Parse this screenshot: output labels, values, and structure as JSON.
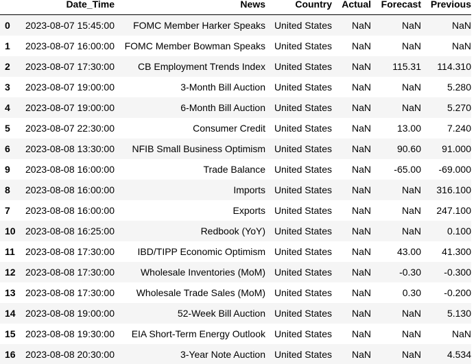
{
  "table": {
    "columns": [
      "",
      "Date_Time",
      "News",
      "Country",
      "Actual",
      "Forecast",
      "Previous"
    ],
    "rows": [
      {
        "index": "0",
        "date_time": "2023-08-07 15:45:00",
        "news": "FOMC Member Harker Speaks",
        "country": "United States",
        "actual": "NaN",
        "forecast": "NaN",
        "previous": "NaN"
      },
      {
        "index": "1",
        "date_time": "2023-08-07 16:00:00",
        "news": "FOMC Member Bowman Speaks",
        "country": "United States",
        "actual": "NaN",
        "forecast": "NaN",
        "previous": "NaN"
      },
      {
        "index": "2",
        "date_time": "2023-08-07 17:30:00",
        "news": "CB Employment Trends Index",
        "country": "United States",
        "actual": "NaN",
        "forecast": "115.31",
        "previous": "114.310"
      },
      {
        "index": "3",
        "date_time": "2023-08-07 19:00:00",
        "news": "3-Month Bill Auction",
        "country": "United States",
        "actual": "NaN",
        "forecast": "NaN",
        "previous": "5.280"
      },
      {
        "index": "4",
        "date_time": "2023-08-07 19:00:00",
        "news": "6-Month Bill Auction",
        "country": "United States",
        "actual": "NaN",
        "forecast": "NaN",
        "previous": "5.270"
      },
      {
        "index": "5",
        "date_time": "2023-08-07 22:30:00",
        "news": "Consumer Credit",
        "country": "United States",
        "actual": "NaN",
        "forecast": "13.00",
        "previous": "7.240"
      },
      {
        "index": "6",
        "date_time": "2023-08-08 13:30:00",
        "news": "NFIB Small Business Optimism",
        "country": "United States",
        "actual": "NaN",
        "forecast": "90.60",
        "previous": "91.000"
      },
      {
        "index": "9",
        "date_time": "2023-08-08 16:00:00",
        "news": "Trade Balance",
        "country": "United States",
        "actual": "NaN",
        "forecast": "-65.00",
        "previous": "-69.000"
      },
      {
        "index": "8",
        "date_time": "2023-08-08 16:00:00",
        "news": "Imports",
        "country": "United States",
        "actual": "NaN",
        "forecast": "NaN",
        "previous": "316.100"
      },
      {
        "index": "7",
        "date_time": "2023-08-08 16:00:00",
        "news": "Exports",
        "country": "United States",
        "actual": "NaN",
        "forecast": "NaN",
        "previous": "247.100"
      },
      {
        "index": "10",
        "date_time": "2023-08-08 16:25:00",
        "news": "Redbook (YoY)",
        "country": "United States",
        "actual": "NaN",
        "forecast": "NaN",
        "previous": "0.100"
      },
      {
        "index": "11",
        "date_time": "2023-08-08 17:30:00",
        "news": "IBD/TIPP Economic Optimism",
        "country": "United States",
        "actual": "NaN",
        "forecast": "43.00",
        "previous": "41.300"
      },
      {
        "index": "12",
        "date_time": "2023-08-08 17:30:00",
        "news": "Wholesale Inventories (MoM)",
        "country": "United States",
        "actual": "NaN",
        "forecast": "-0.30",
        "previous": "-0.300"
      },
      {
        "index": "13",
        "date_time": "2023-08-08 17:30:00",
        "news": "Wholesale Trade Sales (MoM)",
        "country": "United States",
        "actual": "NaN",
        "forecast": "0.30",
        "previous": "-0.200"
      },
      {
        "index": "14",
        "date_time": "2023-08-08 19:00:00",
        "news": "52-Week Bill Auction",
        "country": "United States",
        "actual": "NaN",
        "forecast": "NaN",
        "previous": "5.130"
      },
      {
        "index": "15",
        "date_time": "2023-08-08 19:30:00",
        "news": "EIA Short-Term Energy Outlook",
        "country": "United States",
        "actual": "NaN",
        "forecast": "NaN",
        "previous": "NaN"
      },
      {
        "index": "16",
        "date_time": "2023-08-08 20:30:00",
        "news": "3-Year Note Auction",
        "country": "United States",
        "actual": "NaN",
        "forecast": "NaN",
        "previous": "4.534"
      }
    ]
  },
  "colors": {
    "stripe": "#f5f5f5",
    "background": "#ffffff",
    "text": "#000000",
    "header_rule": "#000000"
  }
}
